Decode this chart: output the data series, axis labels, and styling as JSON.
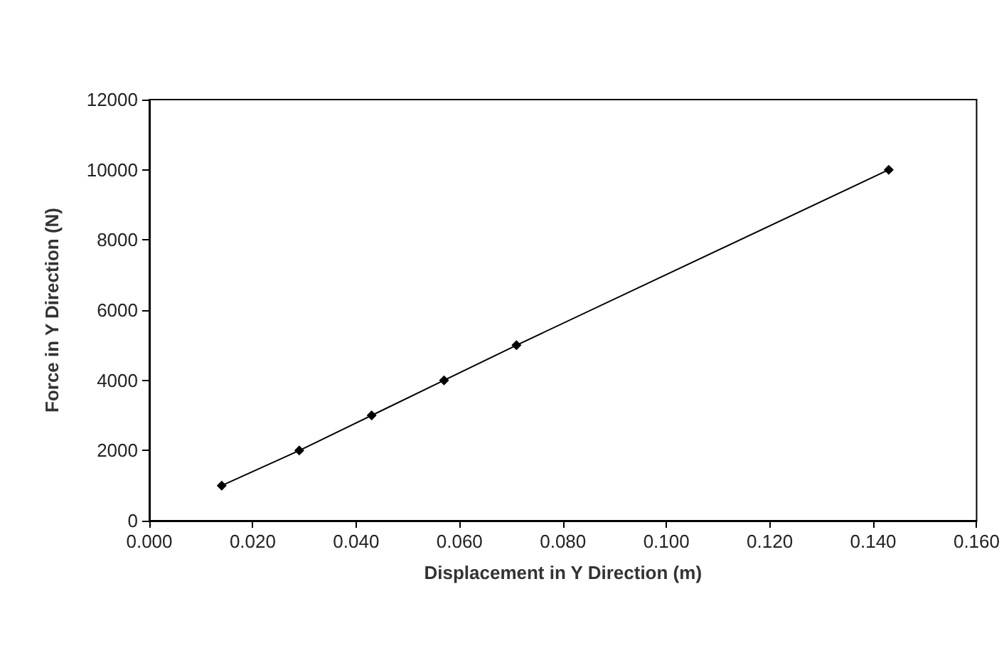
{
  "chart_data": {
    "type": "line",
    "xlabel": "Displacement in Y Direction (m)",
    "ylabel": "Force in Y Direction (N)",
    "x": [
      0.014,
      0.029,
      0.043,
      0.057,
      0.071,
      0.143
    ],
    "series": [
      {
        "color": "#000000",
        "values": [
          1000,
          2000,
          3000,
          4000,
          5000,
          10000
        ]
      }
    ],
    "xlim": [
      0,
      0.16
    ],
    "xticks": [
      {
        "value": 0,
        "label": "0.000"
      },
      {
        "value": 0.02,
        "label": "0.020"
      },
      {
        "value": 0.04,
        "label": "0.040"
      },
      {
        "value": 0.06,
        "label": "0.060"
      },
      {
        "value": 0.08,
        "label": "0.080"
      },
      {
        "value": 0.1,
        "label": "0.100"
      },
      {
        "value": 0.12,
        "label": "0.120"
      },
      {
        "value": 0.14,
        "label": "0.140"
      },
      {
        "value": 0.16,
        "label": "0.160"
      }
    ],
    "ylim": [
      0,
      12000
    ],
    "yticks": [
      0,
      2000,
      4000,
      6000,
      8000,
      10000,
      12000
    ],
    "grid": false,
    "marker": "diamond",
    "line_style": "solid"
  }
}
